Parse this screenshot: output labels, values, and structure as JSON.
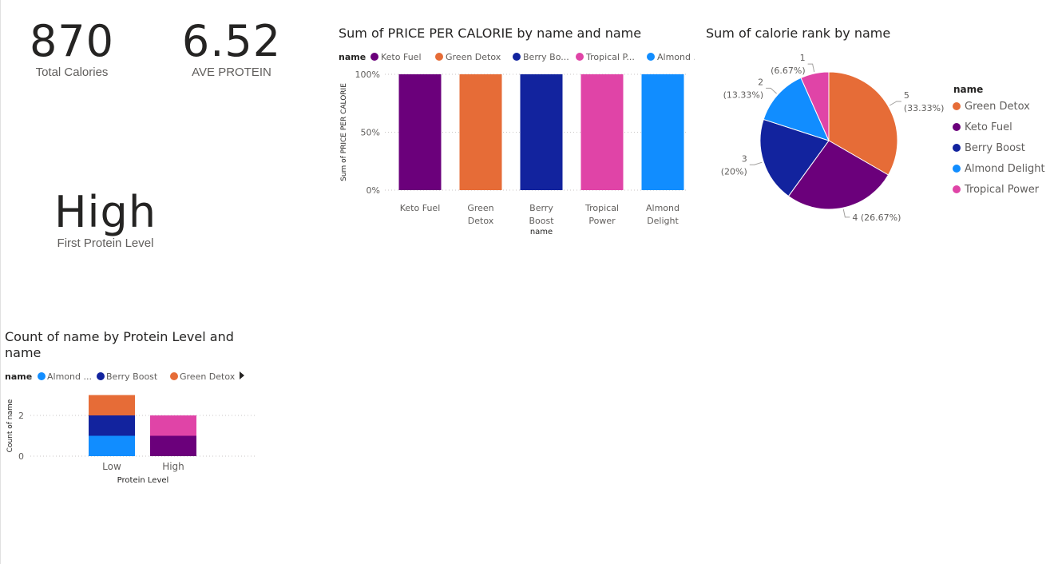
{
  "cards": [
    {
      "value": "870",
      "label": "Total Calories"
    },
    {
      "value": "6.52",
      "label": "AVE PROTEIN"
    },
    {
      "value": "High",
      "label": "First Protein Level"
    }
  ],
  "colors": {
    "Keto Fuel": "#6b007b",
    "Green Detox": "#e66c37",
    "Berry Boost": "#12239e",
    "Tropical Power": "#e044a7",
    "Almond Delight": "#118dff"
  },
  "chart_data": [
    {
      "type": "bar",
      "title": "Sum of PRICE PER CALORIE by name and name",
      "legend_title": "name",
      "legend": [
        "Keto Fuel",
        "Green Detox",
        "Berry Bo...",
        "Tropical P...",
        "Almond ..."
      ],
      "categories": [
        "Keto Fuel",
        "Green Detox",
        "Berry Boost",
        "Tropical Power",
        "Almond Delight"
      ],
      "category_lines": [
        [
          "Keto Fuel"
        ],
        [
          "Green",
          "Detox"
        ],
        [
          "Berry",
          "Boost"
        ],
        [
          "Tropical",
          "Power"
        ],
        [
          "Almond",
          "Delight"
        ]
      ],
      "values": [
        100,
        100,
        100,
        100,
        100
      ],
      "xlabel": "name",
      "ylabel": "Sum of PRICE PER CALORIE",
      "yticks": [
        "0%",
        "50%",
        "100%"
      ],
      "ylim": [
        0,
        100
      ],
      "grid": true,
      "legend_position": "top-left"
    },
    {
      "type": "pie",
      "title": "Sum of calorie rank by name",
      "legend_title": "name",
      "legend": [
        "Green Detox",
        "Keto Fuel",
        "Berry Boost",
        "Almond Delight",
        "Tropical Power"
      ],
      "categories": [
        "Green Detox",
        "Keto Fuel",
        "Berry Boost",
        "Almond Delight",
        "Tropical Power"
      ],
      "values": [
        5,
        4,
        3,
        2,
        1
      ],
      "labels": [
        [
          "5",
          "(33.33%)"
        ],
        [
          "4 (26.67%)"
        ],
        [
          "3",
          "(20%)"
        ],
        [
          "2",
          "(13.33%)"
        ],
        [
          "1",
          "(6.67%)"
        ]
      ],
      "legend_position": "right"
    },
    {
      "type": "bar",
      "stacked": true,
      "title": "Count of name by Protein Level and name",
      "title_lines": [
        "Count of name by Protein Level and",
        "name"
      ],
      "legend_title": "name",
      "legend": [
        "Almond ...",
        "Berry Boost",
        "Green Detox"
      ],
      "categories": [
        "Low",
        "High"
      ],
      "series": [
        {
          "name": "Almond Delight",
          "values": [
            1,
            0
          ]
        },
        {
          "name": "Berry Boost",
          "values": [
            1,
            0
          ]
        },
        {
          "name": "Green Detox",
          "values": [
            1,
            0
          ]
        },
        {
          "name": "Keto Fuel",
          "values": [
            0,
            1
          ]
        },
        {
          "name": "Tropical Power",
          "values": [
            0,
            1
          ]
        }
      ],
      "xlabel": "Protein Level",
      "ylabel": "Count of name",
      "yticks": [
        "0",
        "2"
      ],
      "ylim": [
        0,
        3
      ],
      "grid": true,
      "legend_position": "top-left"
    }
  ]
}
